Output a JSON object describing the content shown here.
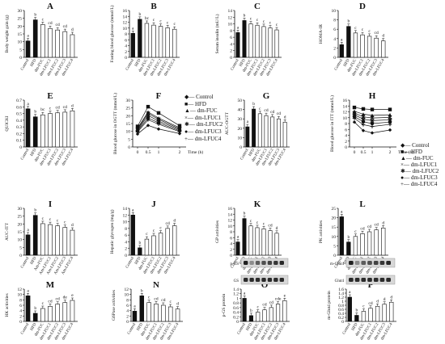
{
  "figure": {
    "panels": [
      {
        "letter": "A"
      },
      {
        "letter": "B"
      },
      {
        "letter": "C"
      },
      {
        "letter": "D"
      },
      {
        "letter": "E"
      },
      {
        "letter": "F"
      },
      {
        "letter": "G"
      },
      {
        "letter": "H"
      },
      {
        "letter": "I"
      },
      {
        "letter": "J"
      },
      {
        "letter": "K"
      },
      {
        "letter": "L"
      },
      {
        "letter": "M"
      },
      {
        "letter": "N"
      },
      {
        "letter": "O"
      },
      {
        "letter": "P"
      }
    ],
    "time_axis_label": "Time (h)"
  },
  "chart_data": [
    {
      "panel": "A",
      "type": "bar",
      "ylabel": "Body weight gain (g)",
      "ylim": [
        0,
        30
      ],
      "yticks": [
        0,
        5,
        10,
        15,
        20,
        25,
        30
      ],
      "categories": [
        "Control",
        "HFD",
        "dm-FUC",
        "dm-LFUC1",
        "dm-LFUC2",
        "dm-LFUC3",
        "dm-LFUC4"
      ],
      "values": [
        10.5,
        24.0,
        21.0,
        18.5,
        17.5,
        16.5,
        14.5
      ],
      "labels": [
        "a",
        "b",
        "c",
        "cd",
        "cd",
        "cd",
        "d"
      ],
      "highlight": [
        0,
        1
      ]
    },
    {
      "panel": "B",
      "type": "bar",
      "ylabel": "Fasting blood glucose (mmol/L)",
      "ylim": [
        0,
        16
      ],
      "yticks": [
        0,
        2,
        4,
        6,
        8,
        10,
        12,
        14,
        16
      ],
      "categories": [
        "Control",
        "HFD",
        "dm-FUC",
        "dm-LFUC1",
        "dm-LFUC2",
        "dm-LFUC3",
        "dm-LFUC4"
      ],
      "values": [
        8.2,
        13.0,
        11.6,
        11.0,
        10.6,
        10.1,
        9.6
      ],
      "labels": [
        "a",
        "b",
        "bc",
        "c",
        "c",
        "c",
        "c"
      ],
      "highlight": [
        0,
        1
      ]
    },
    {
      "panel": "C",
      "type": "bar",
      "ylabel": "Serum insulin (mU/L)",
      "ylim": [
        0,
        14
      ],
      "yticks": [
        0,
        2,
        4,
        6,
        8,
        10,
        12,
        14
      ],
      "categories": [
        "Control",
        "HFD",
        "dm-FUC",
        "dm-LFUC1",
        "dm-LFUC2",
        "dm-LFUC3",
        "dm-LFUC4"
      ],
      "values": [
        7.4,
        11.0,
        10.0,
        9.6,
        9.2,
        8.8,
        8.2
      ],
      "labels": [
        "a",
        "b",
        "c",
        "c",
        "c",
        "c",
        "c"
      ],
      "highlight": [
        0,
        1
      ]
    },
    {
      "panel": "D",
      "type": "bar",
      "ylabel": "HOMA-IR",
      "ylim": [
        0,
        10
      ],
      "yticks": [
        0,
        2,
        4,
        6,
        8,
        10
      ],
      "categories": [
        "Control",
        "HFD",
        "dm-FUC",
        "dm-LFUC1",
        "dm-LFUC2",
        "dm-LFUC3",
        "dm-LFUC4"
      ],
      "values": [
        2.7,
        6.6,
        5.2,
        4.8,
        4.5,
        4.1,
        3.5
      ],
      "labels": [
        "a",
        "b",
        "c",
        "c",
        "c",
        "cd",
        "d"
      ],
      "highlight": [
        0,
        1
      ]
    },
    {
      "panel": "E",
      "type": "bar",
      "ylabel": "QUICKI",
      "ylim": [
        0,
        0.7
      ],
      "yticks": [
        0,
        0.1,
        0.2,
        0.3,
        0.4,
        0.5,
        0.6,
        0.7
      ],
      "categories": [
        "Control",
        "HFD",
        "dm-FUC",
        "dm-LFUC1",
        "dm-LFUC2",
        "dm-LFUC3",
        "dm-LFUC4"
      ],
      "values": [
        0.57,
        0.45,
        0.48,
        0.5,
        0.51,
        0.52,
        0.54
      ],
      "labels": [
        "a",
        "b",
        "bc",
        "c",
        "cd",
        "cd",
        "d"
      ],
      "highlight": [
        0,
        1
      ]
    },
    {
      "panel": "F",
      "type": "line",
      "ylabel": "Blood glucose in OGTT (mmol/L)",
      "xlabel": "Time (h)",
      "ylim": [
        0,
        30
      ],
      "yticks": [
        0,
        5,
        10,
        15,
        20,
        25,
        30
      ],
      "x": [
        0,
        0.5,
        1,
        2
      ],
      "xticks": [
        "0",
        "0.5",
        "1",
        "2"
      ],
      "series": [
        {
          "name": "Control",
          "values": [
            8.3,
            13.8,
            11.5,
            8.6
          ]
        },
        {
          "name": "HFD",
          "values": [
            13.2,
            25.8,
            21.8,
            13.6
          ]
        },
        {
          "name": "dm-FUC",
          "values": [
            12.0,
            22.4,
            18.5,
            12.3
          ]
        },
        {
          "name": "dm-LFUC1",
          "values": [
            11.4,
            21.5,
            17.7,
            11.6
          ]
        },
        {
          "name": "dm-LFUC2",
          "values": [
            10.8,
            20.2,
            16.6,
            11.0
          ]
        },
        {
          "name": "dm-LFUC3",
          "values": [
            10.2,
            18.6,
            15.5,
            10.4
          ]
        },
        {
          "name": "dm-LFUC4",
          "values": [
            9.6,
            17.4,
            14.6,
            9.8
          ]
        }
      ]
    },
    {
      "panel": "G",
      "type": "bar",
      "ylabel": "AUC-OGTT",
      "ylim": [
        0,
        50
      ],
      "yticks": [
        0,
        10,
        20,
        30,
        40,
        50
      ],
      "categories": [
        "Control",
        "HFD",
        "dm-FUC",
        "dm-LFUC1",
        "dm-LFUC2",
        "dm-LFUC3",
        "dm-LFUC4"
      ],
      "values": [
        21.5,
        40.5,
        35.5,
        33.5,
        32.0,
        30.0,
        26.5
      ],
      "labels": [
        "a",
        "b",
        "c",
        "cd",
        "cd",
        "cd",
        "d"
      ],
      "highlight": [
        0,
        1
      ]
    },
    {
      "panel": "H",
      "type": "line",
      "ylabel": "Blood glucose in ITT (mmol/L)",
      "xlabel": "Time (h)",
      "ylim": [
        0,
        16
      ],
      "yticks": [
        0,
        2,
        4,
        6,
        8,
        10,
        12,
        14,
        16
      ],
      "x": [
        0,
        0.5,
        1,
        2
      ],
      "xticks": [
        "0",
        "0.5",
        "1",
        "2"
      ],
      "series": [
        {
          "name": "Control",
          "values": [
            8.5,
            5.6,
            4.8,
            5.8
          ]
        },
        {
          "name": "HFD",
          "values": [
            13.5,
            13.0,
            12.8,
            12.8
          ]
        },
        {
          "name": "dm-FUC",
          "values": [
            12.2,
            11.2,
            10.8,
            11.0
          ]
        },
        {
          "name": "dm-LFUC1",
          "values": [
            11.6,
            10.3,
            9.9,
            10.1
          ]
        },
        {
          "name": "dm-LFUC2",
          "values": [
            11.0,
            9.5,
            9.0,
            9.3
          ]
        },
        {
          "name": "dm-LFUC3",
          "values": [
            10.4,
            8.6,
            8.0,
            8.5
          ]
        },
        {
          "name": "dm-LFUC4",
          "values": [
            9.8,
            7.6,
            7.0,
            7.7
          ]
        }
      ]
    },
    {
      "panel": "I",
      "type": "bar",
      "ylabel": "AUC-ITT",
      "ylim": [
        0,
        30
      ],
      "yticks": [
        0,
        5,
        10,
        15,
        20,
        25,
        30
      ],
      "categories": [
        "Control",
        "HFD",
        "Am-FUC",
        "Am-LFUC1",
        "Am-LFUC2",
        "Am-LFUC3",
        "Am-LFUC4"
      ],
      "values": [
        13.0,
        25.5,
        20.2,
        19.6,
        18.8,
        17.8,
        16.0
      ],
      "labels": [
        "a",
        "b",
        "c",
        "c",
        "c",
        "c",
        "d"
      ],
      "highlight": [
        0,
        1
      ]
    },
    {
      "panel": "J",
      "type": "bar",
      "ylabel": "Hepatic glycogen (mg/g)",
      "ylim": [
        0,
        14
      ],
      "yticks": [
        0,
        2,
        4,
        6,
        8,
        10,
        12,
        14
      ],
      "categories": [
        "Control",
        "HFD",
        "dm-FUC",
        "dm-LFUC1",
        "dm-LFUC2",
        "dm-LFUC3",
        "dm-LFUC4"
      ],
      "values": [
        12.0,
        2.2,
        4.8,
        5.8,
        6.6,
        8.0,
        8.8
      ],
      "labels": [
        "a",
        "b",
        "c",
        "c",
        "c",
        "cd",
        "d"
      ],
      "highlight": [
        0,
        1
      ]
    },
    {
      "panel": "K",
      "type": "bar",
      "ylabel": "GP activities",
      "ylim": [
        0,
        16
      ],
      "yticks": [
        0,
        2,
        4,
        6,
        8,
        10,
        12,
        14,
        16
      ],
      "categories": [
        "Control",
        "HFD",
        "dm-FUC",
        "dm-LFUC1",
        "dm-LFUC2",
        "dm-LFUC3",
        "dm-LFUC4"
      ],
      "values": [
        4.5,
        12.5,
        10.0,
        9.4,
        9.0,
        8.4,
        7.5
      ],
      "labels": [
        "a",
        "b",
        "c",
        "c",
        "c",
        "cd",
        "d"
      ],
      "highlight": [
        0,
        1
      ]
    },
    {
      "panel": "L",
      "type": "bar",
      "ylabel": "PK activities",
      "ylim": [
        0,
        25
      ],
      "yticks": [
        0,
        5,
        10,
        15,
        20,
        25
      ],
      "categories": [
        "Control",
        "HFD",
        "dm-FUC",
        "dm-LFUC1",
        "dm-LFUC2",
        "dm-LFUC3",
        "dm-LFUC4"
      ],
      "values": [
        20.5,
        7.0,
        10.0,
        11.5,
        12.5,
        13.5,
        14.5
      ],
      "labels": [
        "a",
        "b",
        "c",
        "cd",
        "cd",
        "cd",
        "d"
      ],
      "highlight": [
        0,
        1
      ]
    },
    {
      "panel": "M",
      "type": "bar",
      "ylabel": "HK activities",
      "ylim": [
        0,
        12
      ],
      "yticks": [
        0,
        2,
        4,
        6,
        8,
        10,
        12
      ],
      "categories": [
        "Control",
        "HFD",
        "dm-FUC",
        "dm-LFUC1",
        "dm-LFUC2",
        "dm-LFUC3",
        "dm-LFUC4"
      ],
      "values": [
        9.5,
        3.0,
        4.8,
        5.6,
        6.4,
        7.0,
        7.8
      ],
      "labels": [
        "a",
        "b",
        "c",
        "cd",
        "cd",
        "de",
        "e"
      ],
      "highlight": [
        0,
        1
      ]
    },
    {
      "panel": "N",
      "type": "bar",
      "ylabel": "G6Pase activities",
      "ylim": [
        0,
        12
      ],
      "yticks": [
        0,
        2,
        4,
        6,
        8,
        10,
        12
      ],
      "categories": [
        "Control",
        "HFD",
        "dm-FUC",
        "dm-LFUC1",
        "dm-LFUC2",
        "dm-LFUC3",
        "dm-LFUC4"
      ],
      "values": [
        3.8,
        9.5,
        7.0,
        6.5,
        6.0,
        5.4,
        4.6
      ],
      "labels": [
        "a",
        "b",
        "c",
        "cd",
        "cd",
        "c",
        "d"
      ],
      "highlight": [
        0,
        1
      ]
    },
    {
      "panel": "O",
      "type": "bar",
      "ylabel": "p-GS protein",
      "ylim": [
        0,
        1.4
      ],
      "yticks": [
        0,
        0.2,
        0.4,
        0.6,
        0.8,
        1.0,
        1.2,
        1.4
      ],
      "blot_labels": [
        "p-GS",
        "GS"
      ],
      "categories": [
        "Control",
        "HFD",
        "dm-FUC",
        "dm-LFUC1",
        "dm-LFUC2",
        "dm-LFUC3",
        "dm-LFUC4"
      ],
      "values": [
        1.0,
        0.25,
        0.4,
        0.5,
        0.6,
        0.75,
        0.9
      ],
      "labels": [
        "a",
        "b",
        "c",
        "cd",
        "cd",
        "cde",
        "e"
      ],
      "highlight": [
        0,
        1
      ]
    },
    {
      "panel": "P",
      "type": "bar",
      "ylabel": "m-Glut4 protein",
      "ylim": [
        0,
        1.6
      ],
      "yticks": [
        0,
        0.2,
        0.4,
        0.6,
        0.8,
        1.0,
        1.2,
        1.4,
        1.6
      ],
      "blot_labels": [
        "m-Glut4",
        "Glut4"
      ],
      "categories": [
        "Control",
        "HFD",
        "dm-FUC",
        "dm-LFUC1",
        "dm-LFUC2",
        "dm-LFUC3",
        "dm-LFUC4"
      ],
      "values": [
        1.2,
        0.3,
        0.5,
        0.65,
        0.75,
        0.85,
        0.95
      ],
      "labels": [
        "a",
        "b",
        "c",
        "cd",
        "d",
        "d",
        "d"
      ],
      "highlight": [
        0,
        1
      ]
    }
  ]
}
